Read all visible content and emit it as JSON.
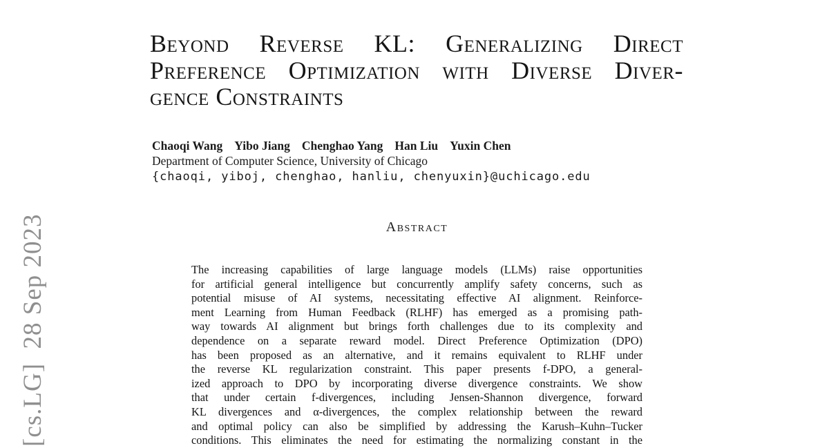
{
  "arxiv_label": "[cs.LG]  28 Sep 2023",
  "title": {
    "lines": [
      "Beyond Reverse KL: Generalizing Direct",
      "Preference Optimization with Diverse Diver-",
      "gence Constraints"
    ]
  },
  "authors": {
    "names": [
      "Chaoqi Wang",
      "Yibo Jiang",
      "Chenghao Yang",
      "Han Liu",
      "Yuxin Chen"
    ],
    "affiliation": "Department of Computer Science, University of Chicago",
    "email": "{chaoqi, yiboj, chenghao, hanliu, chenyuxin}@uchicago.edu"
  },
  "abstract": {
    "heading": "Abstract",
    "lines": [
      "The increasing capabilities of large language models (LLMs) raise opportunities",
      "for artificial general intelligence but concurrently amplify safety concerns, such as",
      "potential misuse of AI systems, necessitating effective AI alignment. Reinforce-",
      "ment Learning from Human Feedback (RLHF) has emerged as a promising path-",
      "way towards AI alignment but brings forth challenges due to its complexity and",
      "dependence on a separate reward model. Direct Preference Optimization (DPO)",
      "has been proposed as an alternative, and it remains equivalent to RLHF under",
      "the reverse KL regularization constraint. This paper presents f-DPO, a general-",
      "ized approach to DPO by incorporating diverse divergence constraints. We show",
      "that under certain f-divergences, including Jensen-Shannon divergence, forward",
      "KL divergences and α-divergences, the complex relationship between the reward",
      "and optimal policy can also be simplified by addressing the Karush–Kuhn–Tucker",
      "conditions. This eliminates the need for estimating the normalizing constant in the"
    ]
  },
  "colors": {
    "background": "#ffffff",
    "text": "#1a1a1a",
    "arxiv_gray": "#8f8f8f"
  }
}
